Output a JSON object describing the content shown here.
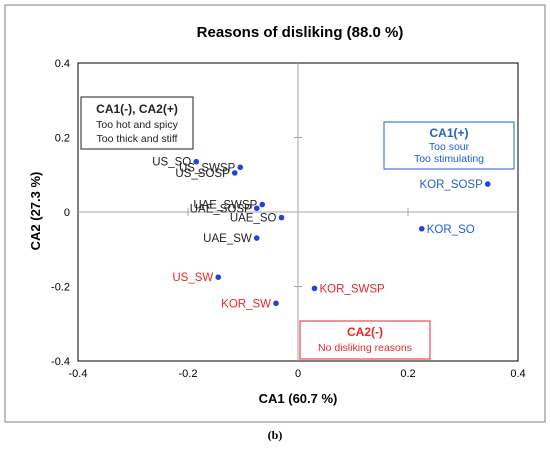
{
  "colors": {
    "black": "#222222",
    "blue": "#1f5fd1",
    "red": "#e8272b",
    "point_blue": "#1f44d6",
    "grid": "#a6a6a6",
    "border": "#7f7f7f"
  },
  "caption": "(b)",
  "chart_data": {
    "type": "scatter",
    "title": "Reasons of disliking (88.0 %)",
    "xlabel": "CA1 (60.7 %)",
    "ylabel": "CA2 (27.3 %)",
    "xlim": [
      -0.4,
      0.4
    ],
    "ylim": [
      -0.4,
      0.4
    ],
    "xticks": [
      "-0.4",
      "-0.2",
      "0",
      "0.2",
      "0.4"
    ],
    "yticks": [
      "0.4",
      "0.2",
      "0",
      "-0.2",
      "-0.4"
    ],
    "grid": false,
    "points": [
      {
        "label": "US_SO",
        "x": -0.185,
        "y": 0.135,
        "label_color": "black",
        "point_color": "blue",
        "label_side": "left"
      },
      {
        "label": "US_SWSP",
        "x": -0.105,
        "y": 0.12,
        "label_color": "black",
        "point_color": "blue",
        "label_side": "left"
      },
      {
        "label": "US_SOSP",
        "x": -0.115,
        "y": 0.105,
        "label_color": "black",
        "point_color": "blue",
        "label_side": "left"
      },
      {
        "label": "UAE_SWSP",
        "x": -0.065,
        "y": 0.02,
        "label_color": "black",
        "point_color": "blue",
        "label_side": "left"
      },
      {
        "label": "UAE_SOSP",
        "x": -0.075,
        "y": 0.01,
        "label_color": "black",
        "point_color": "blue",
        "label_side": "left"
      },
      {
        "label": "UAE_SO",
        "x": -0.03,
        "y": -0.015,
        "label_color": "black",
        "point_color": "blue",
        "label_side": "left"
      },
      {
        "label": "UAE_SW",
        "x": -0.075,
        "y": -0.07,
        "label_color": "black",
        "point_color": "blue",
        "label_side": "left"
      },
      {
        "label": "US_SW",
        "x": -0.145,
        "y": -0.175,
        "label_color": "red",
        "point_color": "blue",
        "label_side": "left"
      },
      {
        "label": "KOR_SW",
        "x": -0.04,
        "y": -0.245,
        "label_color": "red",
        "point_color": "blue",
        "label_side": "left"
      },
      {
        "label": "KOR_SWSP",
        "x": 0.03,
        "y": -0.205,
        "label_color": "red",
        "point_color": "blue",
        "label_side": "right"
      },
      {
        "label": "KOR_SOSP",
        "x": 0.345,
        "y": 0.075,
        "label_color": "blue",
        "point_color": "blue",
        "label_side": "left"
      },
      {
        "label": "KOR_SO",
        "x": 0.225,
        "y": -0.045,
        "label_color": "blue",
        "point_color": "blue",
        "label_side": "right"
      }
    ],
    "annotations": [
      {
        "title": "CA1(-), CA2(+)",
        "lines": [
          "Too hot and spicy",
          "Too thick and stiff"
        ],
        "color": "black"
      },
      {
        "title": "CA1(+)",
        "lines": [
          "Too sour",
          "Too stimulating"
        ],
        "color": "blue"
      },
      {
        "title": "CA2(-)",
        "lines": [
          "No disliking reasons"
        ],
        "color": "red"
      }
    ]
  }
}
